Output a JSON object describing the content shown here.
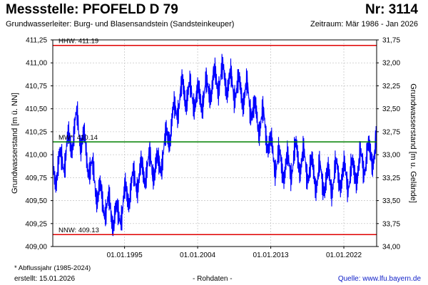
{
  "header": {
    "title": "Messstelle: PFOFELD D 79",
    "number": "Nr: 3114",
    "aquifer": "Grundwasserleiter:  Burg- und Blasensandstein (Sandsteinkeuper)",
    "period": "Zeitraum: Mär 1986 - Jan 2026"
  },
  "footer": {
    "footnote": "* Abflussjahr (1985-2024)",
    "created": "erstellt:  15.01.2026",
    "rawdata": "- Rohdaten -",
    "source": "Quelle:  www.lfu.bayern.de"
  },
  "chart_data": {
    "type": "line",
    "ylabel": "Grundwasserstand [m ü. NN]",
    "ylabel_right": "Grundwasserstand [m u. Gelände]",
    "ylim": [
      409.0,
      411.25
    ],
    "ylim_right": [
      34.0,
      31.75
    ],
    "yticks": [
      "411,25",
      "411,00",
      "410,75",
      "410,50",
      "410,25",
      "410,00",
      "409,75",
      "409,50",
      "409,25",
      "409,00"
    ],
    "yticks_right": [
      "31,75",
      "32,00",
      "32,25",
      "32,50",
      "32,75",
      "33,00",
      "33,25",
      "33,50",
      "33,75",
      "34,00"
    ],
    "xlim": [
      "1986-03-01",
      "2026-01-15"
    ],
    "xticks": [
      "01.01.1995",
      "01.01.2004",
      "01.01.2013",
      "01.01.2022"
    ],
    "grid": true,
    "reference_lines": [
      {
        "label": "HHW: 411.19",
        "value": 411.19,
        "color": "#e00000"
      },
      {
        "label": "MW*: 410.14",
        "value": 410.14,
        "color": "#008000"
      },
      {
        "label": "NNW: 409.13",
        "value": 409.13,
        "color": "#e00000"
      }
    ],
    "series": [
      {
        "color": "#0000ff",
        "x": [
          "1986-03-01",
          "1987-03-01",
          "1988-03-01",
          "1989-03-01",
          "1990-03-01",
          "1991-03-01",
          "1992-03-01",
          "1993-03-01",
          "1994-03-01",
          "1995-03-01",
          "1996-03-01",
          "1997-03-01",
          "1998-03-01",
          "1999-03-01",
          "2000-03-01",
          "2001-03-01",
          "2002-03-01",
          "2003-03-01",
          "2004-03-01",
          "2005-03-01",
          "2006-03-01",
          "2007-03-01",
          "2008-03-01",
          "2009-03-01",
          "2010-03-01",
          "2011-03-01",
          "2012-03-01",
          "2013-03-01",
          "2014-03-01",
          "2015-03-01",
          "2016-03-01",
          "2017-03-01",
          "2018-03-01",
          "2019-03-01",
          "2020-03-01",
          "2021-03-01",
          "2022-03-01",
          "2023-03-01",
          "2024-03-01",
          "2025-03-01",
          "2026-01-01"
        ],
        "y": [
          409.8,
          409.9,
          410.1,
          410.35,
          410.05,
          409.75,
          409.5,
          409.4,
          409.3,
          409.55,
          409.7,
          409.8,
          409.9,
          409.85,
          410.15,
          410.45,
          410.7,
          410.65,
          410.6,
          410.7,
          410.8,
          410.85,
          410.75,
          410.7,
          410.65,
          410.4,
          410.35,
          410.0,
          409.9,
          409.85,
          410.0,
          409.9,
          409.8,
          409.75,
          409.7,
          409.8,
          409.75,
          409.8,
          409.9,
          410.0,
          410.05
        ]
      }
    ]
  }
}
